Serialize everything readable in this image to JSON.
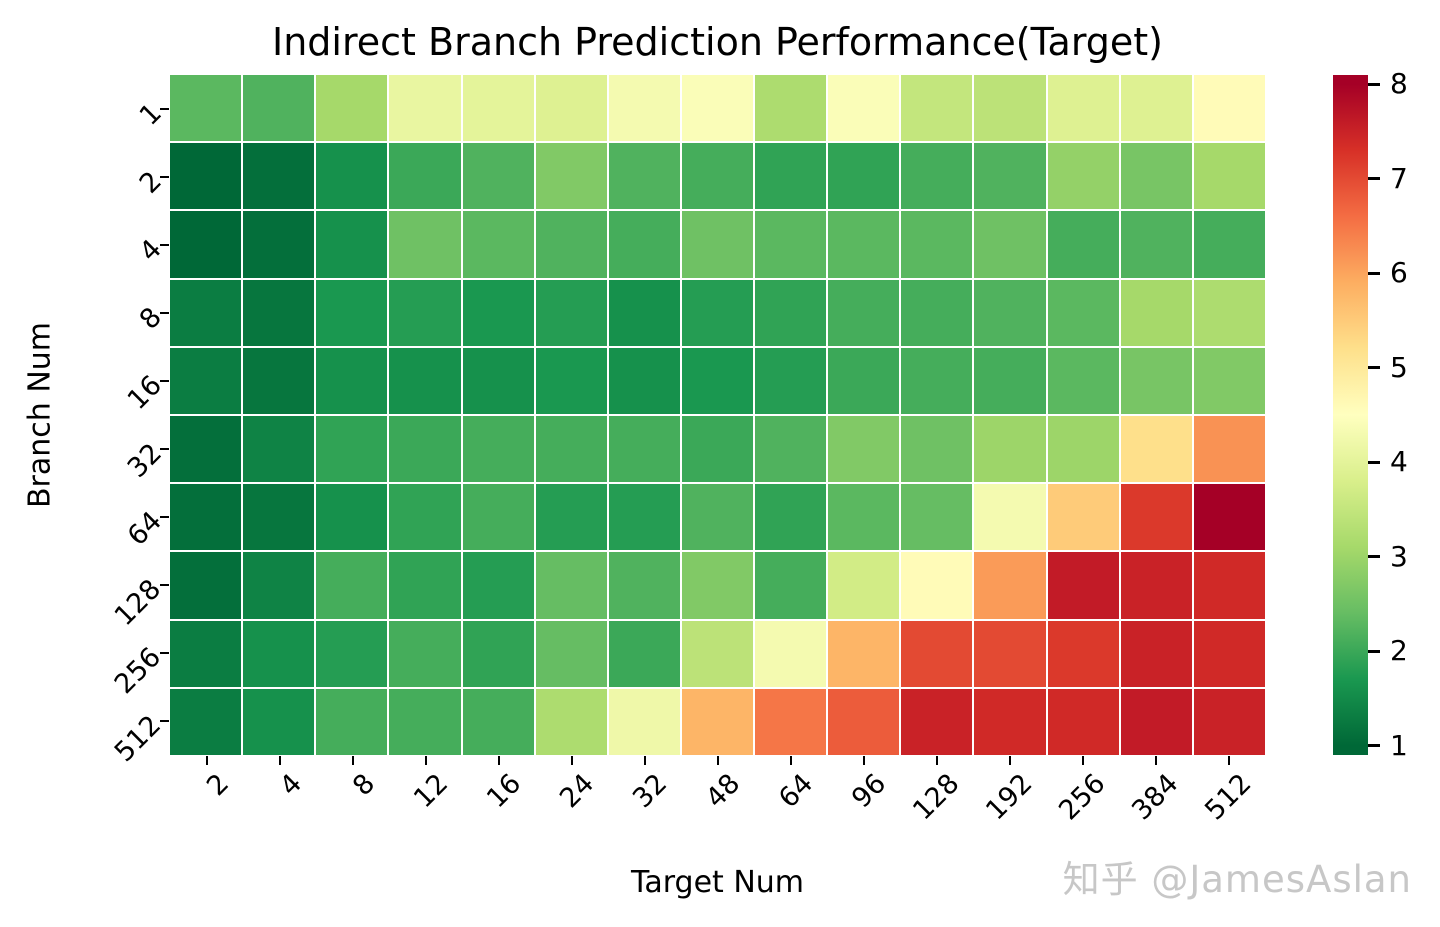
{
  "title": "Indirect Branch Prediction Performance(Target)",
  "watermark": "知乎 @JamesAslan",
  "chart_data": {
    "type": "heatmap",
    "title": "Indirect Branch Prediction Performance(Target)",
    "xlabel": "Target Num",
    "ylabel": "Branch Num",
    "x_ticks": [
      "2",
      "4",
      "8",
      "12",
      "16",
      "24",
      "32",
      "48",
      "64",
      "96",
      "128",
      "192",
      "256",
      "384",
      "512"
    ],
    "y_ticks": [
      "1",
      "2",
      "4",
      "8",
      "16",
      "32",
      "64",
      "128",
      "256",
      "512"
    ],
    "values": [
      [
        2.3,
        2.2,
        3.1,
        4.1,
        4.0,
        3.9,
        4.3,
        4.4,
        3.2,
        4.4,
        3.5,
        3.4,
        3.9,
        3.9,
        4.6
      ],
      [
        1.0,
        1.1,
        1.6,
        2.0,
        2.2,
        2.7,
        2.2,
        2.1,
        1.9,
        1.9,
        2.1,
        2.2,
        2.9,
        2.6,
        3.1
      ],
      [
        1.0,
        1.1,
        1.6,
        2.5,
        2.3,
        2.2,
        2.1,
        2.5,
        2.3,
        2.3,
        2.3,
        2.5,
        2.1,
        2.2,
        2.1
      ],
      [
        1.3,
        1.2,
        1.7,
        1.8,
        1.7,
        1.8,
        1.6,
        1.8,
        1.9,
        2.1,
        2.1,
        2.2,
        2.3,
        3.1,
        3.2
      ],
      [
        1.3,
        1.2,
        1.6,
        1.6,
        1.6,
        1.7,
        1.6,
        1.7,
        1.8,
        2.0,
        2.1,
        2.1,
        2.3,
        2.6,
        2.7
      ],
      [
        1.1,
        1.4,
        1.9,
        2.0,
        2.1,
        2.1,
        2.1,
        2.0,
        2.2,
        2.7,
        2.5,
        3.0,
        3.0,
        5.2,
        6.2
      ],
      [
        1.1,
        1.2,
        1.6,
        1.9,
        2.1,
        1.8,
        1.8,
        2.2,
        1.9,
        2.3,
        2.4,
        4.3,
        5.5,
        7.2,
        8.0
      ],
      [
        1.1,
        1.4,
        2.1,
        1.9,
        1.8,
        2.4,
        2.2,
        2.7,
        2.1,
        3.7,
        4.6,
        6.1,
        7.6,
        7.5,
        7.4
      ],
      [
        1.3,
        1.6,
        1.8,
        2.1,
        1.9,
        2.4,
        2.0,
        3.4,
        4.3,
        5.8,
        7.0,
        7.0,
        7.2,
        7.5,
        7.4
      ],
      [
        1.3,
        1.6,
        2.1,
        2.1,
        2.1,
        3.2,
        4.2,
        5.8,
        6.5,
        6.8,
        7.5,
        7.4,
        7.4,
        7.6,
        7.5
      ]
    ],
    "colormap": "RdYlGn_r",
    "colormap_stops": [
      {
        "v": 1.0,
        "c": "#006837"
      },
      {
        "v": 1.7,
        "c": "#1a9850"
      },
      {
        "v": 2.4,
        "c": "#66bd63"
      },
      {
        "v": 3.1,
        "c": "#a6d96a"
      },
      {
        "v": 3.8,
        "c": "#d9ef8b"
      },
      {
        "v": 4.5,
        "c": "#ffffbf"
      },
      {
        "v": 5.2,
        "c": "#fee08b"
      },
      {
        "v": 5.9,
        "c": "#fdae61"
      },
      {
        "v": 6.6,
        "c": "#f46d43"
      },
      {
        "v": 7.3,
        "c": "#d73027"
      },
      {
        "v": 8.0,
        "c": "#a50026"
      }
    ],
    "colorbar_ticks": [
      "8",
      "7",
      "6",
      "5",
      "4",
      "3",
      "2",
      "1"
    ],
    "scale_min": 0.9,
    "scale_max": 8.1,
    "legend_position": "right",
    "grid": false
  }
}
